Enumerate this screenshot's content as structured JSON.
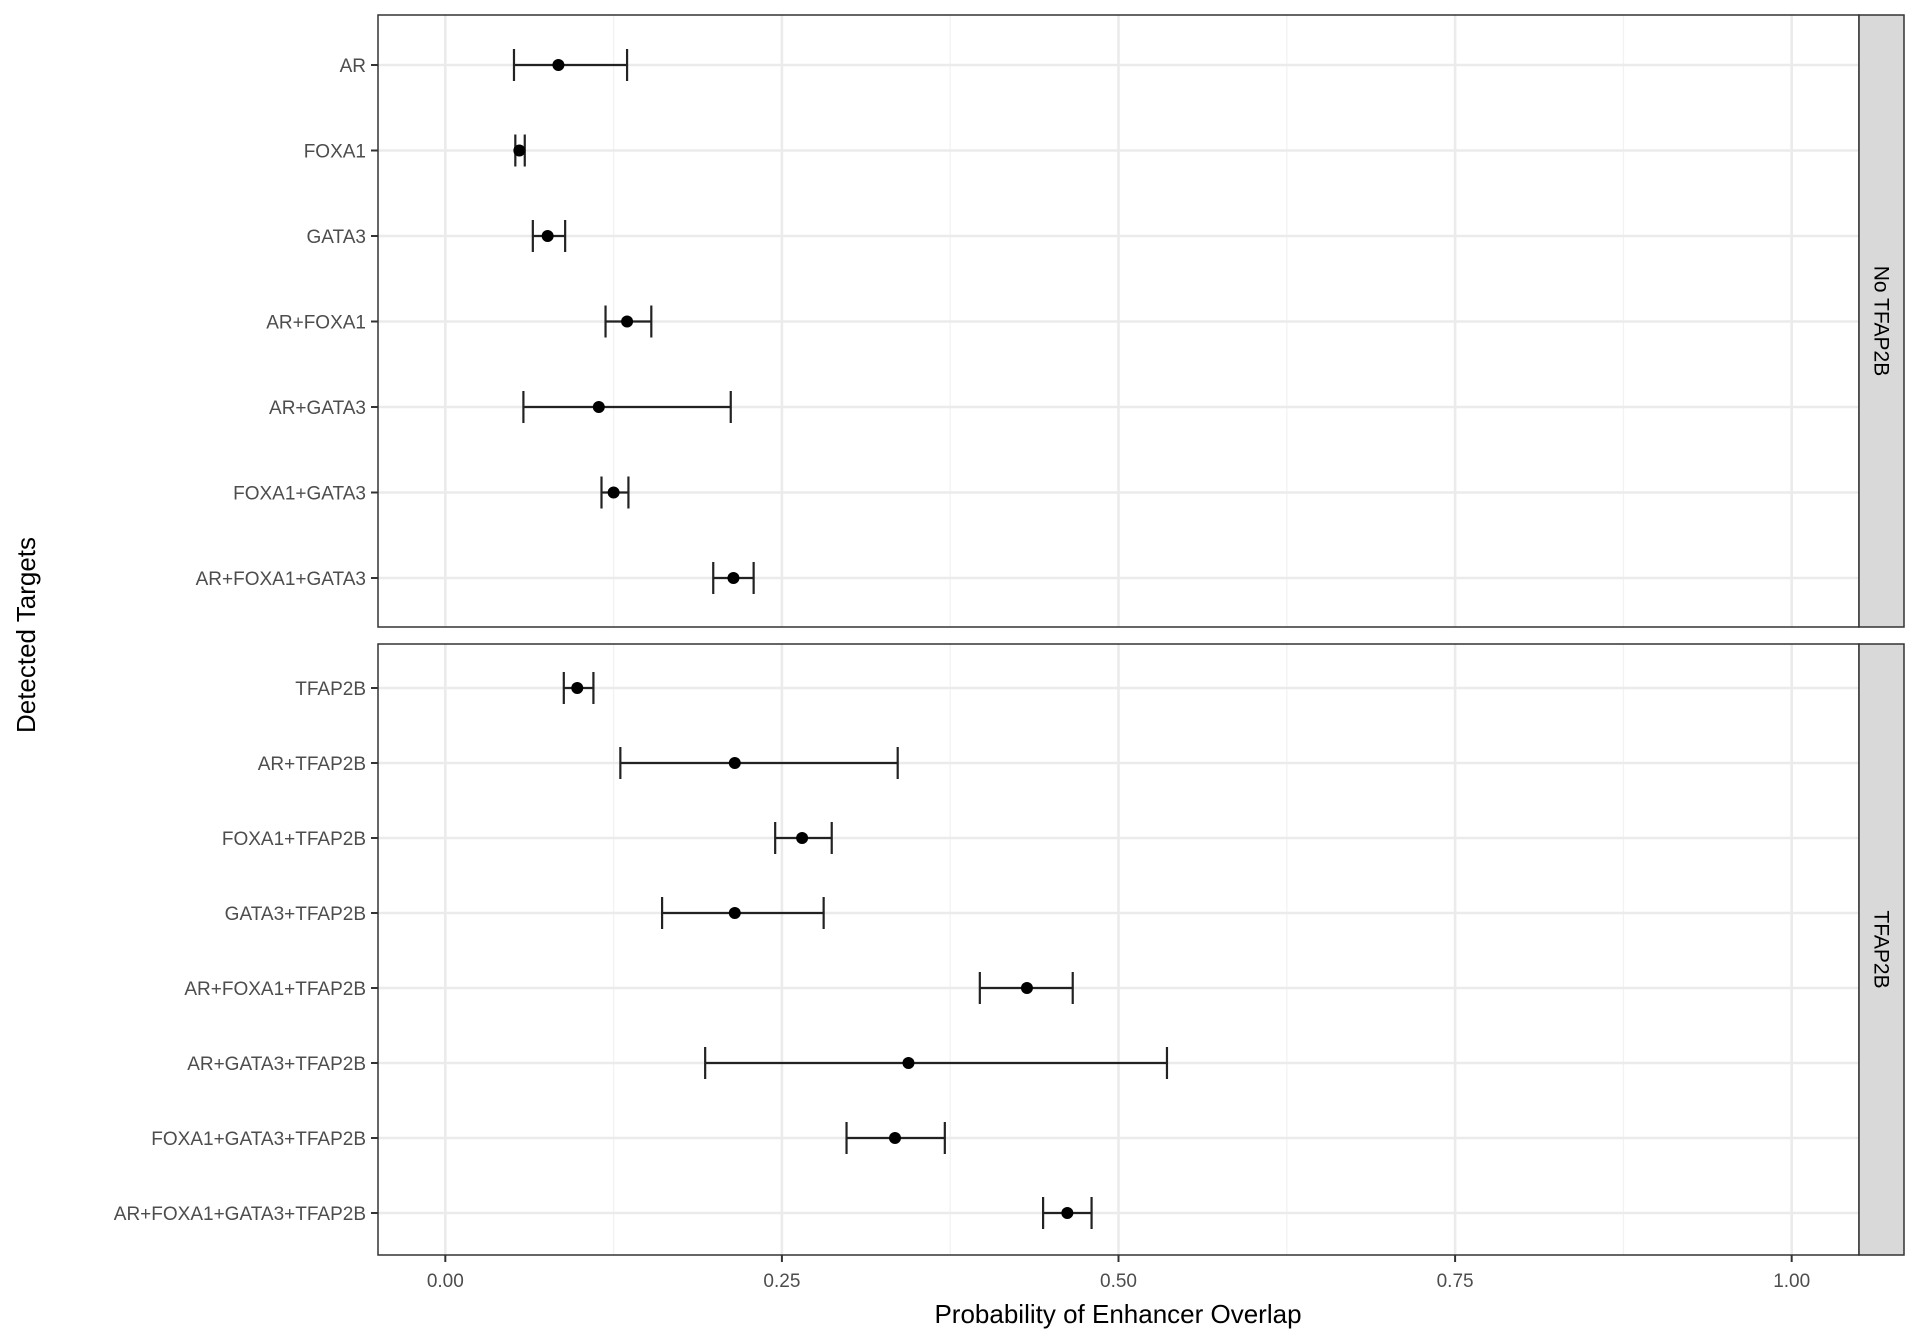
{
  "chart_data": {
    "type": "scatter",
    "subtype": "point-range (error bars), faceted",
    "xlabel": "Probability of Enhancer Overlap",
    "ylabel": "Detected Targets",
    "xlim": [
      -0.05,
      1.05
    ],
    "xticks": [
      "0.00",
      "0.25",
      "0.50",
      "0.75",
      "1.00"
    ],
    "grid": true,
    "point_color": "#000000",
    "facets": [
      {
        "label": "No TFAP2B",
        "rows": [
          {
            "category": "AR",
            "estimate": 0.084,
            "lower": 0.051,
            "upper": 0.135
          },
          {
            "category": "FOXA1",
            "estimate": 0.055,
            "lower": 0.052,
            "upper": 0.059
          },
          {
            "category": "GATA3",
            "estimate": 0.076,
            "lower": 0.065,
            "upper": 0.089
          },
          {
            "category": "AR+FOXA1",
            "estimate": 0.135,
            "lower": 0.119,
            "upper": 0.153
          },
          {
            "category": "AR+GATA3",
            "estimate": 0.114,
            "lower": 0.058,
            "upper": 0.212
          },
          {
            "category": "FOXA1+GATA3",
            "estimate": 0.125,
            "lower": 0.116,
            "upper": 0.136
          },
          {
            "category": "AR+FOXA1+GATA3",
            "estimate": 0.214,
            "lower": 0.199,
            "upper": 0.229
          }
        ]
      },
      {
        "label": "TFAP2B",
        "rows": [
          {
            "category": "TFAP2B",
            "estimate": 0.098,
            "lower": 0.088,
            "upper": 0.11
          },
          {
            "category": "AR+TFAP2B",
            "estimate": 0.215,
            "lower": 0.13,
            "upper": 0.336
          },
          {
            "category": "FOXA1+TFAP2B",
            "estimate": 0.265,
            "lower": 0.245,
            "upper": 0.287
          },
          {
            "category": "GATA3+TFAP2B",
            "estimate": 0.215,
            "lower": 0.161,
            "upper": 0.281
          },
          {
            "category": "AR+FOXA1+TFAP2B",
            "estimate": 0.432,
            "lower": 0.397,
            "upper": 0.466
          },
          {
            "category": "AR+GATA3+TFAP2B",
            "estimate": 0.344,
            "lower": 0.193,
            "upper": 0.536
          },
          {
            "category": "FOXA1+GATA3+TFAP2B",
            "estimate": 0.334,
            "lower": 0.298,
            "upper": 0.371
          },
          {
            "category": "AR+FOXA1+GATA3+TFAP2B",
            "estimate": 0.462,
            "lower": 0.444,
            "upper": 0.48
          }
        ]
      }
    ]
  }
}
